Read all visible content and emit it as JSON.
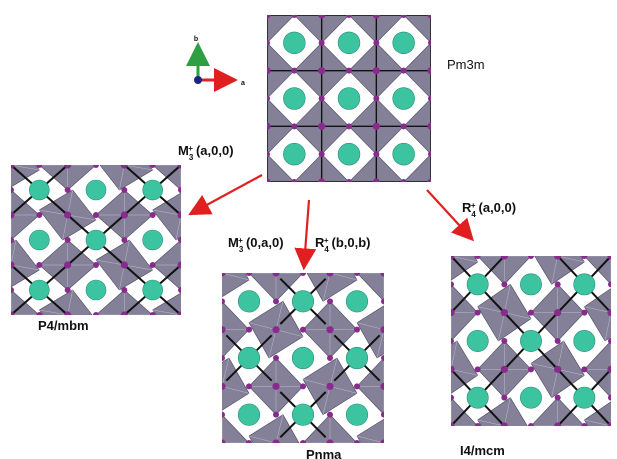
{
  "colors": {
    "octahedron": "#6e6a86",
    "octahedron_edge": "#4b4863",
    "anion": "#8a2a8e",
    "cation": "#3cc3a0",
    "cell_line": "#111111",
    "arrow": "#e02020",
    "axis_a": "#e02020",
    "axis_b": "#2ea043",
    "axis_c": "#1a237e"
  },
  "axes": {
    "a_label": "a",
    "b_label": "b"
  },
  "structures": {
    "parent": {
      "label": "Pm3m"
    },
    "left": {
      "label": "P4/mbm"
    },
    "middle": {
      "label": "Pnma"
    },
    "right": {
      "label": "I4/mcm"
    }
  },
  "transitions": {
    "left": {
      "irrep": "M",
      "sub": "3",
      "sup": "+",
      "order": "(a,0,0)"
    },
    "middle_1": {
      "irrep": "M",
      "sub": "3",
      "sup": "+",
      "order": "(0,a,0)"
    },
    "middle_2": {
      "irrep": "R",
      "sub": "4",
      "sup": "+",
      "order": "(b,0,b)"
    },
    "right": {
      "irrep": "R",
      "sub": "4",
      "sup": "+",
      "order": "(a,0,0)"
    }
  }
}
